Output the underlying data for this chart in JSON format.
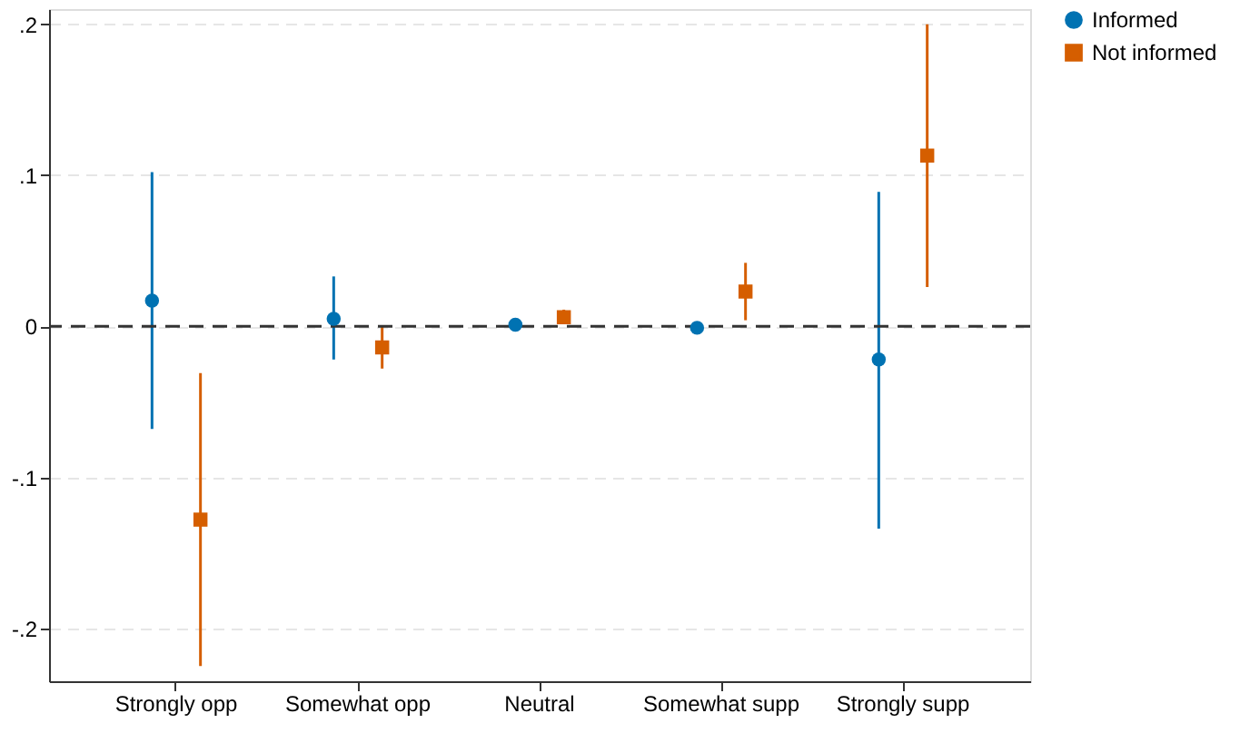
{
  "chart_data": {
    "type": "scatter",
    "categories": [
      "Strongly opp",
      "Somewhat opp",
      "Neutral",
      "Somewhat supp",
      "Strongly supp"
    ],
    "series": [
      {
        "name": "Informed",
        "color": "#0072b2",
        "marker": "circle",
        "values": [
          0.017,
          0.005,
          0.001,
          -0.001,
          -0.022
        ],
        "errors": [
          [
            -0.068,
            0.102
          ],
          [
            -0.022,
            0.033
          ],
          [
            -0.002,
            0.004
          ],
          [
            -0.004,
            0.002
          ],
          [
            -0.134,
            0.089
          ]
        ]
      },
      {
        "name": "Not informed",
        "color": "#d55e00",
        "marker": "square",
        "values": [
          -0.128,
          -0.014,
          0.006,
          0.023,
          0.113
        ],
        "errors": [
          [
            -0.225,
            -0.031
          ],
          [
            -0.028,
            0
          ],
          [
            0.002,
            0.011
          ],
          [
            0.004,
            0.042
          ],
          [
            0.026,
            0.2
          ]
        ]
      }
    ],
    "ylim": [
      -0.235,
      0.21
    ],
    "yticks": [
      {
        "value": -0.2,
        "label": "-.2"
      },
      {
        "value": -0.1,
        "label": "-.1"
      },
      0,
      {
        "value": 0.1,
        "label": ".1"
      },
      {
        "value": 0.2,
        "label": ".2"
      }
    ],
    "grid": "y",
    "legend": "right",
    "ref_lines": [
      {
        "axis": "y",
        "value": 0,
        "line_style": "dashed",
        "color": "#333333"
      }
    ]
  }
}
